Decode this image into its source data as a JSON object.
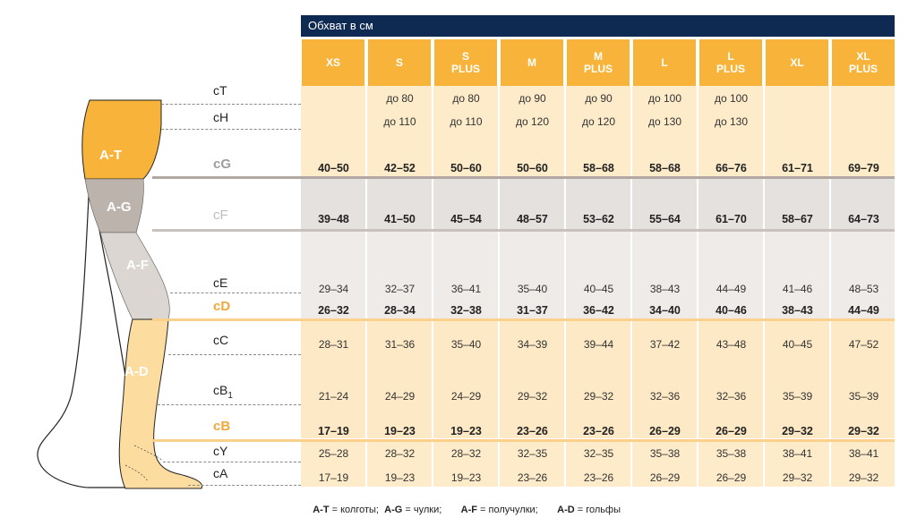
{
  "header": {
    "title": "Обхват в см"
  },
  "sizes": [
    "XS",
    "S",
    "S\nPLUS",
    "M",
    "M\nPLUS",
    "L",
    "L\nPLUS",
    "XL",
    "XL\nPLUS"
  ],
  "rows": [
    {
      "label": "cT",
      "sub": "",
      "style": "normal",
      "bold": false,
      "values": [
        "",
        "до 80",
        "до 80",
        "до 90",
        "до 90",
        "до 100",
        "до 100",
        "",
        ""
      ]
    },
    {
      "label": "cH",
      "sub": "",
      "style": "normal",
      "bold": false,
      "values": [
        "",
        "до 110",
        "до 110",
        "до 120",
        "до 120",
        "до 130",
        "до 130",
        "",
        ""
      ]
    },
    {
      "label": "cG",
      "sub": "",
      "style": "hl-gray",
      "bold": true,
      "values": [
        "40–50",
        "42–52",
        "50–60",
        "50–60",
        "58–68",
        "58–68",
        "66–76",
        "61–71",
        "69–79"
      ]
    },
    {
      "label": "cF",
      "sub": "",
      "style": "hl-light",
      "bold": true,
      "values": [
        "39–48",
        "41–50",
        "45–54",
        "48–57",
        "53–62",
        "55–64",
        "61–70",
        "58–67",
        "64–73"
      ]
    },
    {
      "label": "cE",
      "sub": "",
      "style": "normal",
      "bold": false,
      "values": [
        "29–34",
        "32–37",
        "36–41",
        "35–40",
        "40–45",
        "38–43",
        "44–49",
        "41–46",
        "48–53"
      ]
    },
    {
      "label": "cD",
      "sub": "",
      "style": "hl-orange",
      "bold": true,
      "values": [
        "26–32",
        "28–34",
        "32–38",
        "31–37",
        "36–42",
        "34–40",
        "40–46",
        "38–43",
        "44–49"
      ]
    },
    {
      "label": "cC",
      "sub": "",
      "style": "normal",
      "bold": false,
      "values": [
        "28–31",
        "31–36",
        "35–40",
        "34–39",
        "39–44",
        "37–42",
        "43–48",
        "40–45",
        "47–52"
      ]
    },
    {
      "label": "cB",
      "sub": "1",
      "style": "normal",
      "bold": false,
      "values": [
        "21–24",
        "24–29",
        "24–29",
        "29–32",
        "29–32",
        "32–36",
        "32–36",
        "35–39",
        "35–39"
      ]
    },
    {
      "label": "cB",
      "sub": "",
      "style": "hl-orange",
      "bold": true,
      "values": [
        "17–19",
        "19–23",
        "19–23",
        "23–26",
        "23–26",
        "26–29",
        "26–29",
        "29–32",
        "29–32"
      ]
    },
    {
      "label": "cY",
      "sub": "",
      "style": "normal",
      "bold": false,
      "values": [
        "25–28",
        "28–32",
        "28–32",
        "32–35",
        "32–35",
        "35–38",
        "35–38",
        "38–41",
        "38–41"
      ]
    },
    {
      "label": "cA",
      "sub": "",
      "style": "normal",
      "bold": false,
      "values": [
        "17–19",
        "19–23",
        "19–23",
        "23–26",
        "23–26",
        "26–29",
        "26–29",
        "29–32",
        "29–32"
      ]
    }
  ],
  "leg_zones": [
    {
      "label": "A-T",
      "color": "#f8b43a"
    },
    {
      "label": "A-G",
      "color": "#bdb3ad"
    },
    {
      "label": "A-F",
      "color": "#dcd6d3"
    },
    {
      "label": "A-D",
      "color": "#fddca0"
    }
  ],
  "legend": [
    {
      "code": "A-T",
      "text": "колготы;"
    },
    {
      "code": "A-G",
      "text": "чулки;"
    },
    {
      "code": "A-F",
      "text": "получулки;"
    },
    {
      "code": "A-D",
      "text": "гольфы"
    }
  ],
  "colors": {
    "navy": "#0f2a52",
    "orange": "#f8b43a",
    "band_light_orange": "#fdebc9",
    "band_gray": "#e5e1df",
    "band_light_gray": "#efebe9",
    "band_peach": "#fde9c5"
  }
}
